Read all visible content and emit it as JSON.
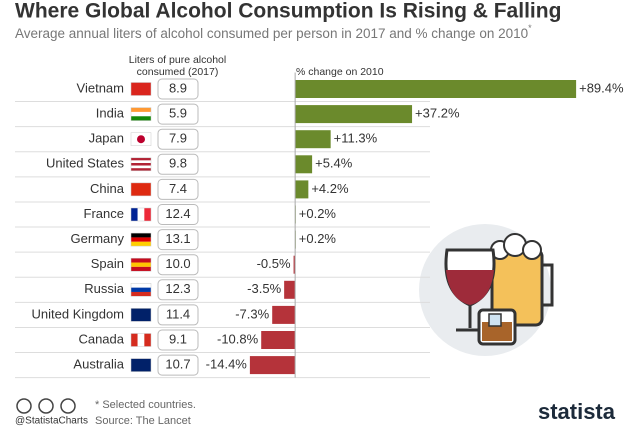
{
  "chart_data": {
    "type": "bar",
    "orientation": "horizontal",
    "title": "Where Global Alcohol Consumption Is Rising & Falling",
    "subtitle": "Average annual liters of alcohol consumed per person in 2017 and % change on 2010",
    "subtitle_note": "*",
    "categories": [
      "Vietnam",
      "India",
      "Japan",
      "United States",
      "China",
      "France",
      "Germany",
      "Spain",
      "Russia",
      "United Kingdom",
      "Canada",
      "Australia"
    ],
    "series": [
      {
        "name": "Liters of pure alcohol consumed (2017)",
        "values": [
          8.9,
          5.9,
          7.9,
          9.8,
          7.4,
          12.4,
          13.1,
          10.0,
          12.3,
          11.4,
          9.1,
          10.7
        ],
        "value_labels": [
          "8.9",
          "5.9",
          "7.9",
          "9.8",
          "7.4",
          "12.4",
          "13.1",
          "10.0",
          "12.3",
          "11.4",
          "9.1",
          "10.7"
        ]
      },
      {
        "name": "% change on 2010",
        "color": "#6b8a2c",
        "negative_color": "#b5333a",
        "values": [
          89.4,
          37.2,
          11.3,
          5.4,
          4.2,
          0.2,
          0.2,
          -0.5,
          -3.5,
          -7.3,
          -10.8,
          -14.4
        ],
        "value_labels": [
          "+89.4%",
          "+37.2%",
          "+11.3%",
          "+5.4%",
          "+4.2%",
          "+0.2%",
          "+0.2%",
          "-0.5%",
          "-3.5%",
          "-7.3%",
          "-10.8%",
          "-14.4%"
        ]
      }
    ],
    "xlim": [
      -15,
      90
    ],
    "footer": {
      "note": "* Selected countries.",
      "source": "Source: The Lancet",
      "handle": "@StatistaCharts",
      "brand": "statista"
    }
  }
}
